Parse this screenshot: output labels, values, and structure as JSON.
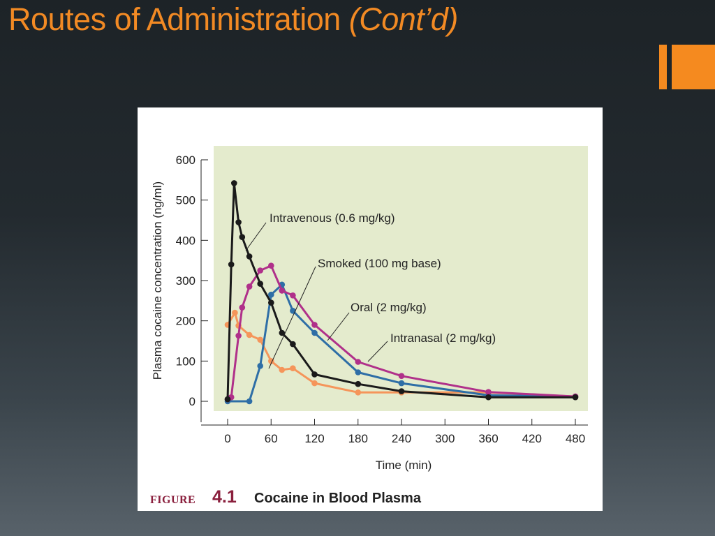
{
  "slide": {
    "title_main": "Routes of Administration",
    "title_italic": "(Cont’d)",
    "accent_color": "#f58a1f",
    "title_color": "#f28a24"
  },
  "figure": {
    "label_word": "FIGURE",
    "label_number": "4.1",
    "caption": "Cocaine in Blood Plasma",
    "plot_background": "#e4ebcd"
  },
  "chart_data": {
    "type": "line",
    "title": "",
    "xlabel": "Time (min)",
    "ylabel": "Plasma cocaine concentration (ng/ml)",
    "xlim": [
      0,
      480
    ],
    "ylim": [
      0,
      600
    ],
    "x_ticks": [
      0,
      60,
      120,
      180,
      240,
      300,
      360,
      420,
      480
    ],
    "y_ticks": [
      0,
      100,
      200,
      300,
      400,
      500,
      600
    ],
    "grid": false,
    "series": [
      {
        "name": "Intravenous (0.6 mg/kg)",
        "color": "#1a1a1a",
        "points": [
          [
            0,
            5
          ],
          [
            5,
            340
          ],
          [
            9,
            542
          ],
          [
            15,
            445
          ],
          [
            20,
            408
          ],
          [
            30,
            360
          ],
          [
            45,
            292
          ],
          [
            60,
            245
          ],
          [
            75,
            170
          ],
          [
            90,
            142
          ],
          [
            120,
            67
          ],
          [
            180,
            43
          ],
          [
            240,
            25
          ],
          [
            360,
            10
          ],
          [
            480,
            10
          ]
        ]
      },
      {
        "name": "Smoked (100 mg base)",
        "color": "#f5955a",
        "points": [
          [
            0,
            190
          ],
          [
            10,
            220
          ],
          [
            15,
            188
          ],
          [
            30,
            165
          ],
          [
            45,
            153
          ],
          [
            60,
            100
          ],
          [
            75,
            78
          ],
          [
            90,
            82
          ],
          [
            120,
            45
          ],
          [
            180,
            22
          ],
          [
            240,
            22
          ],
          [
            360,
            22
          ],
          [
            480,
            12
          ]
        ]
      },
      {
        "name": "Oral (2 mg/kg)",
        "color": "#2e6ea6",
        "points": [
          [
            0,
            0
          ],
          [
            30,
            0
          ],
          [
            45,
            88
          ],
          [
            60,
            265
          ],
          [
            75,
            290
          ],
          [
            90,
            225
          ],
          [
            120,
            170
          ],
          [
            180,
            72
          ],
          [
            240,
            45
          ],
          [
            360,
            15
          ],
          [
            480,
            12
          ]
        ]
      },
      {
        "name": "Intranasal (2 mg/kg)",
        "color": "#b0308a",
        "points": [
          [
            0,
            5
          ],
          [
            5,
            10
          ],
          [
            15,
            163
          ],
          [
            20,
            233
          ],
          [
            30,
            285
          ],
          [
            45,
            325
          ],
          [
            60,
            337
          ],
          [
            75,
            275
          ],
          [
            90,
            263
          ],
          [
            120,
            190
          ],
          [
            180,
            98
          ],
          [
            240,
            63
          ],
          [
            360,
            23
          ],
          [
            480,
            12
          ]
        ]
      }
    ],
    "annotations": [
      {
        "text": "Intravenous (0.6 mg/kg)",
        "points_to_series": 0
      },
      {
        "text": "Smoked (100 mg base)",
        "points_to_series": 1
      },
      {
        "text": "Oral (2 mg/kg)",
        "points_to_series": 2
      },
      {
        "text": "Intranasal (2 mg/kg)",
        "points_to_series": 3
      }
    ]
  }
}
